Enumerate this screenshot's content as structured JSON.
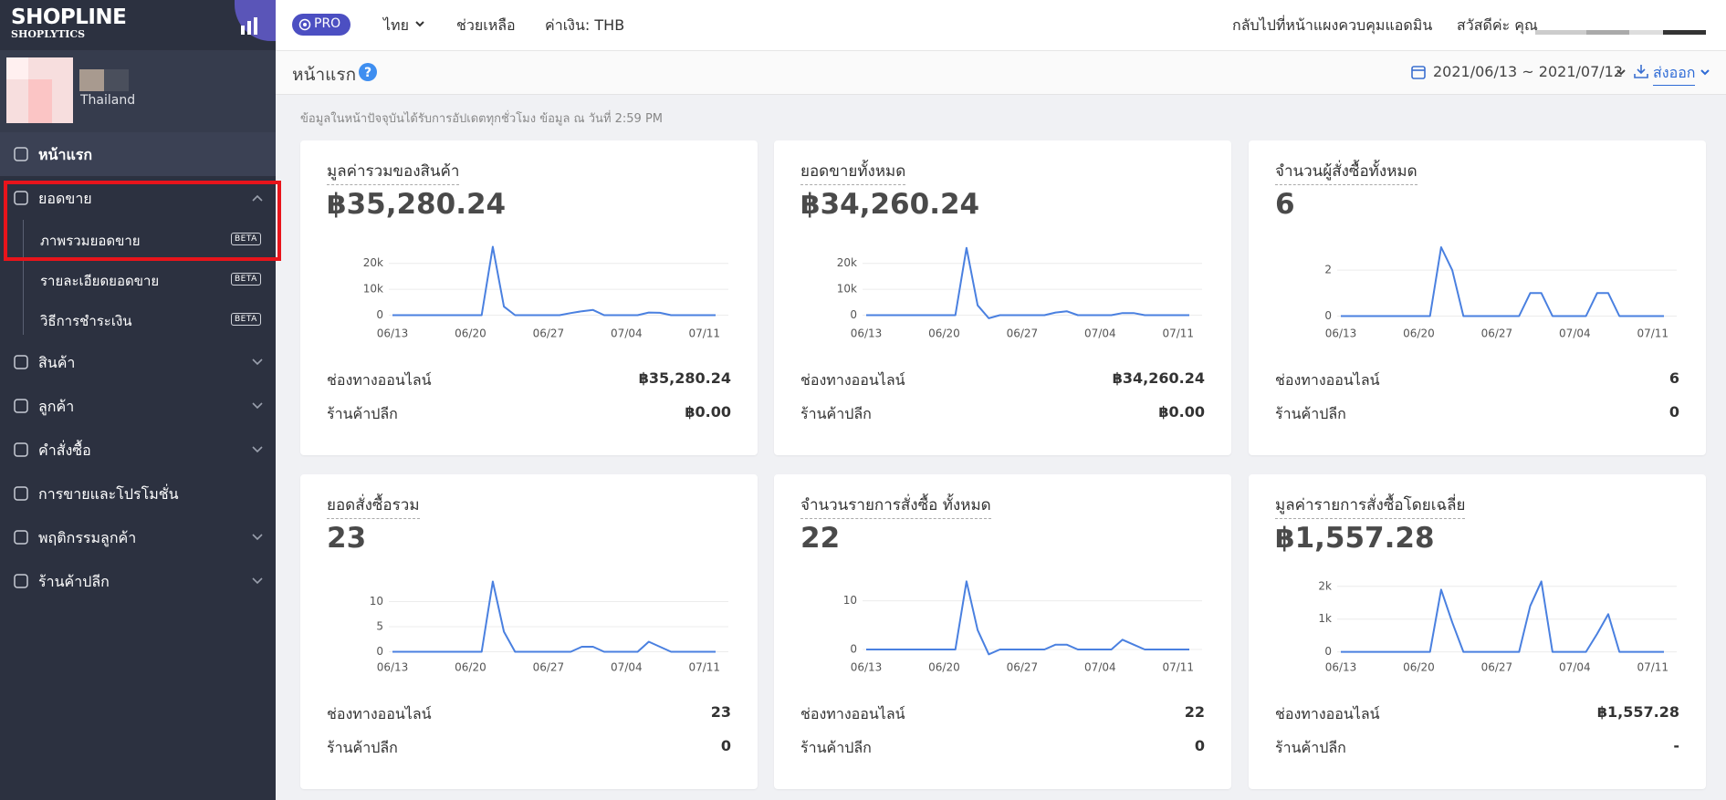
{
  "sidebar": {
    "brand": "SHOPLINE",
    "product": "SHOPLYTICS",
    "store_country": "Thailand",
    "menu": [
      {
        "label": "หน้าแรก",
        "active": true,
        "expandable": false
      },
      {
        "label": "ยอดขาย",
        "active": false,
        "expandable": true,
        "expanded": true,
        "children": [
          {
            "label": "ภาพรวมยอดขาย",
            "badge": "BETA"
          },
          {
            "label": "รายละเอียดยอดขาย",
            "badge": "BETA"
          },
          {
            "label": "วิธีการชำระเงิน",
            "badge": "BETA"
          }
        ]
      },
      {
        "label": "สินค้า",
        "active": false,
        "expandable": true
      },
      {
        "label": "ลูกค้า",
        "active": false,
        "expandable": true
      },
      {
        "label": "คำสั่งซื้อ",
        "active": false,
        "expandable": true
      },
      {
        "label": "การขายและโปรโมชั่น",
        "active": false,
        "expandable": false
      },
      {
        "label": "พฤติกรรมลูกค้า",
        "active": false,
        "expandable": true
      },
      {
        "label": "ร้านค้าปลีก",
        "active": false,
        "expandable": true
      }
    ]
  },
  "topbar": {
    "plan": "PRO",
    "language": "ไทย",
    "help": "ช่วยเหลือ",
    "currency": "ค่าเงิน: THB",
    "admin_link": "กลับไปที่หน้าแผงควบคุมแอดมิน",
    "greeting": "สวัสดีค่ะ คุณ"
  },
  "header": {
    "title": "หน้าแรก",
    "date_range": "2021/06/13 ~ 2021/07/12",
    "export": "ส่งออก",
    "notice": "ข้อมูลในหน้าปัจจุบันได้รับการอัปเดตทุกชั่วโมง ข้อมูล ณ วันที่ 2:59 PM"
  },
  "cards": [
    {
      "title": "มูลค่ารวมของสินค้า",
      "total": "฿35,280.24",
      "rows": [
        {
          "label": "ช่องทางออนไลน์",
          "value": "฿35,280.24"
        },
        {
          "label": "ร้านค้าปลีก",
          "value": "฿0.00"
        }
      ]
    },
    {
      "title": "ยอดขายทั้งหมด",
      "total": "฿34,260.24",
      "rows": [
        {
          "label": "ช่องทางออนไลน์",
          "value": "฿34,260.24"
        },
        {
          "label": "ร้านค้าปลีก",
          "value": "฿0.00"
        }
      ]
    },
    {
      "title": "จำนวนผู้สั่งซื้อทั้งหมด",
      "total": "6",
      "rows": [
        {
          "label": "ช่องทางออนไลน์",
          "value": "6"
        },
        {
          "label": "ร้านค้าปลีก",
          "value": "0"
        }
      ]
    },
    {
      "title": "ยอดสั่งซื้อรวม",
      "total": "23",
      "rows": [
        {
          "label": "ช่องทางออนไลน์",
          "value": "23"
        },
        {
          "label": "ร้านค้าปลีก",
          "value": "0"
        }
      ]
    },
    {
      "title": "จำนวนรายการสั่งซื้อ ทั้งหมด",
      "total": "22",
      "rows": [
        {
          "label": "ช่องทางออนไลน์",
          "value": "22"
        },
        {
          "label": "ร้านค้าปลีก",
          "value": "0"
        }
      ]
    },
    {
      "title": "มูลค่ารายการสั่งซื้อโดยเฉลี่ย",
      "total": "฿1,557.28",
      "rows": [
        {
          "label": "ช่องทางออนไลน์",
          "value": "฿1,557.28"
        },
        {
          "label": "ร้านค้าปลีก",
          "value": "-"
        }
      ]
    }
  ],
  "chart_data": [
    {
      "type": "line",
      "color": "#4a80e0",
      "grid": true,
      "categories": [
        "06/13",
        null,
        null,
        null,
        null,
        null,
        null,
        "06/20",
        null,
        null,
        null,
        null,
        null,
        null,
        "06/27",
        null,
        null,
        null,
        null,
        null,
        null,
        "07/04",
        null,
        null,
        null,
        null,
        null,
        null,
        "07/11",
        null
      ],
      "values": [
        0,
        0,
        0,
        0,
        0,
        0,
        0,
        0,
        0,
        26400,
        3300,
        0,
        0,
        0,
        0,
        0,
        800,
        1500,
        2000,
        0,
        0,
        0,
        0,
        1000,
        900,
        0,
        0,
        0,
        0,
        0
      ],
      "ylim": [
        -3000,
        28000
      ],
      "yticks": [
        0,
        {
          "value": 10000,
          "label": "10k"
        },
        {
          "value": 20000,
          "label": "20k"
        }
      ]
    },
    {
      "type": "line",
      "color": "#4a80e0",
      "grid": true,
      "categories": [
        "06/13",
        null,
        null,
        null,
        null,
        null,
        null,
        "06/20",
        null,
        null,
        null,
        null,
        null,
        null,
        "06/27",
        null,
        null,
        null,
        null,
        null,
        null,
        "07/04",
        null,
        null,
        null,
        null,
        null,
        null,
        "07/11",
        null
      ],
      "values": [
        0,
        0,
        0,
        0,
        0,
        0,
        0,
        0,
        0,
        26000,
        3800,
        -1200,
        0,
        0,
        0,
        0,
        0,
        1000,
        1500,
        0,
        0,
        0,
        0,
        800,
        800,
        0,
        0,
        0,
        0,
        0
      ],
      "ylim": [
        -3000,
        28000
      ],
      "yticks": [
        0,
        {
          "value": 10000,
          "label": "10k"
        },
        {
          "value": 20000,
          "label": "20k"
        }
      ]
    },
    {
      "type": "line",
      "color": "#4a80e0",
      "grid": true,
      "categories": [
        "06/13",
        null,
        null,
        null,
        null,
        null,
        null,
        "06/20",
        null,
        null,
        null,
        null,
        null,
        null,
        "06/27",
        null,
        null,
        null,
        null,
        null,
        null,
        "07/04",
        null,
        null,
        null,
        null,
        null,
        null,
        "07/11",
        null
      ],
      "values": [
        0,
        0,
        0,
        0,
        0,
        0,
        0,
        0,
        0,
        3,
        2,
        0,
        0,
        0,
        0,
        0,
        0,
        1,
        1,
        0,
        0,
        0,
        0,
        1,
        1,
        0,
        0,
        0,
        0,
        0
      ],
      "ylim": [
        -0.3,
        3.2
      ],
      "yticks": [
        0,
        2
      ]
    },
    {
      "type": "line",
      "color": "#4a80e0",
      "grid": true,
      "categories": [
        "06/13",
        null,
        null,
        null,
        null,
        null,
        null,
        "06/20",
        null,
        null,
        null,
        null,
        null,
        null,
        "06/27",
        null,
        null,
        null,
        null,
        null,
        null,
        "07/04",
        null,
        null,
        null,
        null,
        null,
        null,
        "07/11",
        null
      ],
      "values": [
        0,
        0,
        0,
        0,
        0,
        0,
        0,
        0,
        0,
        14,
        4,
        0,
        0,
        0,
        0,
        0,
        0,
        1,
        1,
        0,
        0,
        0,
        0,
        2,
        1,
        0,
        0,
        0,
        0,
        0
      ],
      "ylim": [
        -1,
        15
      ],
      "yticks": [
        0,
        5,
        10
      ]
    },
    {
      "type": "line",
      "color": "#4a80e0",
      "grid": true,
      "categories": [
        "06/13",
        null,
        null,
        null,
        null,
        null,
        null,
        "06/20",
        null,
        null,
        null,
        null,
        null,
        null,
        "06/27",
        null,
        null,
        null,
        null,
        null,
        null,
        "07/04",
        null,
        null,
        null,
        null,
        null,
        null,
        "07/11",
        null
      ],
      "values": [
        0,
        0,
        0,
        0,
        0,
        0,
        0,
        0,
        0,
        14,
        4,
        -1,
        0,
        0,
        0,
        0,
        0,
        1,
        1,
        0,
        0,
        0,
        0,
        2,
        1,
        0,
        0,
        0,
        0,
        0
      ],
      "ylim": [
        -1.5,
        15
      ],
      "yticks": [
        0,
        10
      ]
    },
    {
      "type": "line",
      "color": "#4a80e0",
      "grid": true,
      "categories": [
        "06/13",
        null,
        null,
        null,
        null,
        null,
        null,
        "06/20",
        null,
        null,
        null,
        null,
        null,
        null,
        "06/27",
        null,
        null,
        null,
        null,
        null,
        null,
        "07/04",
        null,
        null,
        null,
        null,
        null,
        null,
        "07/11",
        null
      ],
      "values": [
        0,
        0,
        0,
        0,
        0,
        0,
        0,
        0,
        0,
        1900,
        900,
        0,
        0,
        0,
        0,
        0,
        0,
        1400,
        2150,
        0,
        0,
        0,
        0,
        550,
        1150,
        0,
        0,
        0,
        0,
        0
      ],
      "ylim": [
        -150,
        2300
      ],
      "yticks": [
        0,
        {
          "value": 1000,
          "label": "1k"
        },
        {
          "value": 2000,
          "label": "2k"
        }
      ]
    }
  ]
}
